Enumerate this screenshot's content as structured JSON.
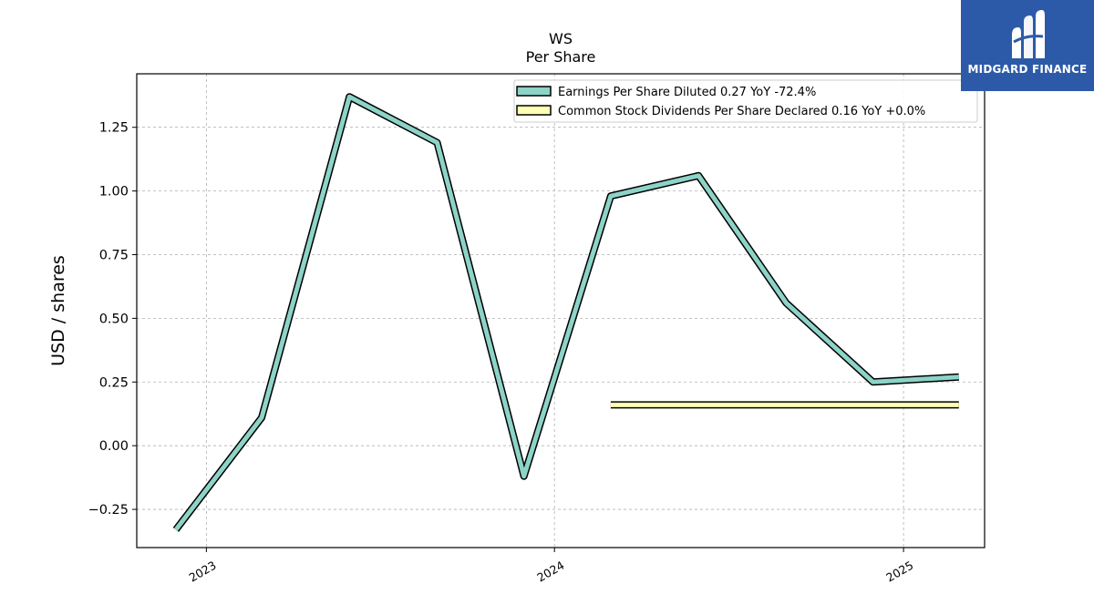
{
  "chart_data": {
    "type": "line",
    "title": "WS",
    "subtitle": "Per  Share",
    "ylabel": "USD / shares",
    "xlabel": "",
    "ylim": [
      -0.4,
      1.46
    ],
    "xlim": [
      "2022-10-20",
      "2025-03-27"
    ],
    "grid": true,
    "legend_position": "top-right",
    "y_ticks": [
      -0.25,
      0.0,
      0.25,
      0.5,
      0.75,
      1.0,
      1.25
    ],
    "y_tick_labels": [
      "−0.25",
      "0.00",
      "0.25",
      "0.50",
      "0.75",
      "1.00",
      "1.25"
    ],
    "x_ticks": [
      {
        "label": "2023",
        "date": "2023-01-01"
      },
      {
        "label": "2024",
        "date": "2024-01-01"
      },
      {
        "label": "2025",
        "date": "2025-01-01"
      }
    ],
    "series": [
      {
        "name": "Earnings Per Share Diluted",
        "legend_label": "Earnings Per Share Diluted  0.27 YoY -72.4%",
        "color": "#8dd3c7",
        "points": [
          {
            "x": "2022-11-30",
            "y": -0.33
          },
          {
            "x": "2023-02-28",
            "y": 0.11
          },
          {
            "x": "2023-05-31",
            "y": 1.37
          },
          {
            "x": "2023-08-31",
            "y": 1.19
          },
          {
            "x": "2023-11-30",
            "y": -0.12
          },
          {
            "x": "2024-02-29",
            "y": 0.98
          },
          {
            "x": "2024-05-31",
            "y": 1.06
          },
          {
            "x": "2024-08-31",
            "y": 0.56
          },
          {
            "x": "2024-11-30",
            "y": 0.25
          },
          {
            "x": "2025-02-28",
            "y": 0.27
          }
        ]
      },
      {
        "name": "Common Stock Dividends Per Share Declared",
        "legend_label": "Common Stock Dividends Per Share Declared  0.16 YoY +0.0%",
        "color": "#ffffb3",
        "points": [
          {
            "x": "2024-02-29",
            "y": 0.16
          },
          {
            "x": "2024-05-31",
            "y": 0.16
          },
          {
            "x": "2024-08-31",
            "y": 0.16
          },
          {
            "x": "2024-11-30",
            "y": 0.16
          },
          {
            "x": "2025-02-28",
            "y": 0.16
          }
        ]
      }
    ]
  },
  "logo": {
    "text": "MIDGARD FINANCE",
    "background": "#2d5aa8"
  }
}
